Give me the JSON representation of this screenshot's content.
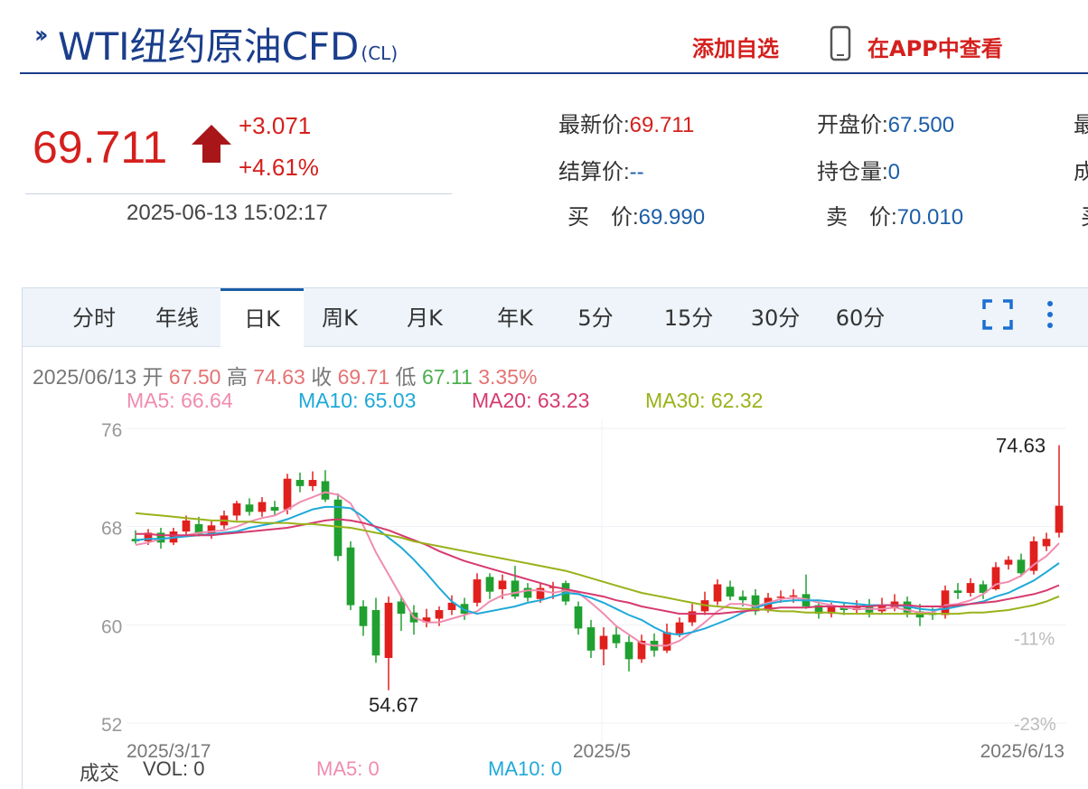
{
  "header": {
    "title": "WTI纽约原油CFD",
    "code": "(CL)",
    "add_fav": "添加自选",
    "app_link": "在APP中查看"
  },
  "quote": {
    "price": "69.711",
    "change": "+3.071",
    "change_pct": "+4.61%",
    "timestamp": "2025-06-13 15:02:17",
    "fields": {
      "latest_label": "最新价:",
      "latest_value": "69.711",
      "open_label": "开盘价:",
      "open_value": "67.500",
      "settle_label": "结算价:",
      "settle_value": "--",
      "oi_label": "持仓量:",
      "oi_value": "0",
      "bid_label": "买　价:",
      "bid_value": "69.990",
      "ask_label": "卖　价:",
      "ask_value": "70.010",
      "cut1": "最",
      "cut2": "成",
      "cut3": "买"
    }
  },
  "tabs": [
    "分时",
    "年线",
    "日K",
    "周K",
    "月K",
    "年K",
    "5分",
    "15分",
    "30分",
    "60分"
  ],
  "active_tab": "日K",
  "info": {
    "date": "2025/06/13",
    "open_label": "开",
    "open": "67.50",
    "high_label": "高",
    "high": "74.63",
    "close_label": "收",
    "close": "69.71",
    "low_label": "低",
    "low": "67.11",
    "amp": "3.35%"
  },
  "ma": {
    "ma5": "MA5: 66.64",
    "ma10": "MA10: 65.03",
    "ma20": "MA20: 63.23",
    "ma30": "MA30: 62.32"
  },
  "volume": {
    "label": "成交",
    "vol": "VOL: 0",
    "ma5": "MA5: 0",
    "ma10": "MA10: 0"
  },
  "colors": {
    "up": "#e0201d",
    "down": "#20a030",
    "ma5": "#f08cb0",
    "ma10": "#1fa9d8",
    "ma20": "#d63a6e",
    "ma30": "#99b21a",
    "brand": "#1b3e8c"
  },
  "chart_data": {
    "type": "candlestick",
    "x_labels": [
      "2025/3/17",
      "2025/5",
      "2025/6/13"
    ],
    "y_ticks": [
      76,
      68,
      60,
      52
    ],
    "pct_ticks": [
      "-11%",
      "-23%"
    ],
    "ylim": [
      52,
      76
    ],
    "annotations": [
      {
        "text": "74.63",
        "value": 74.63
      },
      {
        "text": "54.67",
        "value": 54.67
      }
    ],
    "candles": [
      [
        67.0,
        66.8,
        67.7,
        66.6
      ],
      [
        66.8,
        67.5,
        67.8,
        66.5
      ],
      [
        67.5,
        66.7,
        67.9,
        66.2
      ],
      [
        66.7,
        67.6,
        67.9,
        66.5
      ],
      [
        67.6,
        68.5,
        68.9,
        67.3
      ],
      [
        68.2,
        67.4,
        68.8,
        67.2
      ],
      [
        67.4,
        68.1,
        68.5,
        67.0
      ],
      [
        68.1,
        68.9,
        69.3,
        67.8
      ],
      [
        68.9,
        69.9,
        70.1,
        68.5
      ],
      [
        69.8,
        69.2,
        70.3,
        68.9
      ],
      [
        69.2,
        70.0,
        70.4,
        68.8
      ],
      [
        69.6,
        69.3,
        70.1,
        68.9
      ],
      [
        69.4,
        71.9,
        72.3,
        69.0
      ],
      [
        71.8,
        71.3,
        72.4,
        70.8
      ],
      [
        71.3,
        71.8,
        72.5,
        70.9
      ],
      [
        71.7,
        70.2,
        72.6,
        70.0
      ],
      [
        70.2,
        65.6,
        70.7,
        65.2
      ],
      [
        66.3,
        61.6,
        66.8,
        61.2
      ],
      [
        61.5,
        59.9,
        62.0,
        59.1
      ],
      [
        61.2,
        57.5,
        62.2,
        56.9
      ],
      [
        57.3,
        61.8,
        62.3,
        54.67
      ],
      [
        61.9,
        60.9,
        62.4,
        59.5
      ],
      [
        61.0,
        60.2,
        61.6,
        59.2
      ],
      [
        60.2,
        60.6,
        61.3,
        59.8
      ],
      [
        60.5,
        61.2,
        61.5,
        59.9
      ],
      [
        61.2,
        61.8,
        62.4,
        60.8
      ],
      [
        61.7,
        60.9,
        62.2,
        60.4
      ],
      [
        61.8,
        63.7,
        64.2,
        61.5
      ],
      [
        63.9,
        62.7,
        64.2,
        62.1
      ],
      [
        62.9,
        63.6,
        64.1,
        62.1
      ],
      [
        63.6,
        62.3,
        64.8,
        62.1
      ],
      [
        63.0,
        62.2,
        63.4,
        61.9
      ],
      [
        62.1,
        63.0,
        63.4,
        61.8
      ],
      [
        63.0,
        63.1,
        63.5,
        62.1
      ],
      [
        63.4,
        61.9,
        63.6,
        61.6
      ],
      [
        61.5,
        59.7,
        61.9,
        59.2
      ],
      [
        59.8,
        57.9,
        60.4,
        57.3
      ],
      [
        58.0,
        59.1,
        59.8,
        56.7
      ],
      [
        59.2,
        58.5,
        59.9,
        58.1
      ],
      [
        58.6,
        57.2,
        59.1,
        56.2
      ],
      [
        57.2,
        58.7,
        59.2,
        56.9
      ],
      [
        58.7,
        57.9,
        59.3,
        57.4
      ],
      [
        57.9,
        59.4,
        60.1,
        57.7
      ],
      [
        59.3,
        60.2,
        60.6,
        59.0
      ],
      [
        60.2,
        61.1,
        61.7,
        59.9
      ],
      [
        61.1,
        62.0,
        62.7,
        60.8
      ],
      [
        61.9,
        63.3,
        63.7,
        61.6
      ],
      [
        63.1,
        62.3,
        63.6,
        62.0
      ],
      [
        62.3,
        62.0,
        62.8,
        61.5
      ],
      [
        62.4,
        61.1,
        62.9,
        60.8
      ],
      [
        61.2,
        62.2,
        62.6,
        61.0
      ],
      [
        62.2,
        62.3,
        62.8,
        61.8
      ],
      [
        62.3,
        62.4,
        62.9,
        61.8
      ],
      [
        62.5,
        61.5,
        64.1,
        61.3
      ],
      [
        61.6,
        60.9,
        61.9,
        60.5
      ],
      [
        60.9,
        61.5,
        61.8,
        60.6
      ],
      [
        61.4,
        61.2,
        61.8,
        60.8
      ],
      [
        61.2,
        61.5,
        62.0,
        60.9
      ],
      [
        61.5,
        61.0,
        62.1,
        60.6
      ],
      [
        61.1,
        61.6,
        62.2,
        60.9
      ],
      [
        61.4,
        61.9,
        62.5,
        61.1
      ],
      [
        61.9,
        61.0,
        62.3,
        60.6
      ],
      [
        61.1,
        60.6,
        61.7,
        59.9
      ],
      [
        61.0,
        60.8,
        61.4,
        60.4
      ],
      [
        60.8,
        62.8,
        63.2,
        60.5
      ],
      [
        62.8,
        62.6,
        63.4,
        62.1
      ],
      [
        62.6,
        63.4,
        63.8,
        62.3
      ],
      [
        63.3,
        62.6,
        63.6,
        62.1
      ],
      [
        62.9,
        64.7,
        65.1,
        62.8
      ],
      [
        64.9,
        65.3,
        65.6,
        64.5
      ],
      [
        65.3,
        64.2,
        65.8,
        63.9
      ],
      [
        64.4,
        66.8,
        67.2,
        64.1
      ],
      [
        66.4,
        67.0,
        67.5,
        66.0
      ],
      [
        67.5,
        69.7,
        74.63,
        67.11
      ]
    ],
    "series": [
      {
        "name": "MA5",
        "values": [
          66.5,
          66.7,
          67.0,
          67.1,
          67.3,
          67.5,
          67.6,
          67.7,
          68.0,
          68.4,
          68.7,
          68.9,
          69.4,
          70.0,
          70.4,
          70.8,
          70.6,
          69.9,
          68.1,
          65.9,
          64.1,
          62.3,
          60.6,
          60.2,
          60.2,
          60.5,
          60.8,
          61.1,
          61.9,
          62.4,
          62.6,
          62.8,
          62.8,
          62.6,
          62.8,
          62.6,
          61.8,
          60.9,
          59.9,
          59.2,
          58.5,
          58.3,
          58.3,
          58.7,
          59.4,
          60.2,
          61.1,
          61.7,
          61.7,
          61.5,
          61.8,
          62.1,
          62.2,
          62.1,
          61.8,
          61.6,
          61.4,
          61.3,
          61.3,
          61.3,
          61.4,
          61.2,
          61.0,
          61.0,
          61.6,
          61.7,
          62.0,
          62.5,
          63.3,
          63.5,
          64.0,
          64.9,
          65.6,
          66.64
        ]
      },
      {
        "name": "MA10",
        "values": [
          66.9,
          67.0,
          67.0,
          67.1,
          67.2,
          67.3,
          67.4,
          67.5,
          67.6,
          67.9,
          68.1,
          68.3,
          68.6,
          69.0,
          69.4,
          69.6,
          69.6,
          69.5,
          68.8,
          67.9,
          67.1,
          66.3,
          65.3,
          64.2,
          63.0,
          61.9,
          61.2,
          60.9,
          61.1,
          61.3,
          61.5,
          61.8,
          62.0,
          62.3,
          62.6,
          62.5,
          62.2,
          61.8,
          61.3,
          60.8,
          60.4,
          59.8,
          59.3,
          59.2,
          59.4,
          59.7,
          60.1,
          60.5,
          61.0,
          61.4,
          61.7,
          61.9,
          62.0,
          62.0,
          62.0,
          61.9,
          61.8,
          61.7,
          61.6,
          61.6,
          61.6,
          61.5,
          61.3,
          61.2,
          61.3,
          61.5,
          61.7,
          61.9,
          62.3,
          62.6,
          63.1,
          63.6,
          64.3,
          65.03
        ]
      },
      {
        "name": "MA20",
        "values": [
          67.4,
          67.4,
          67.3,
          67.3,
          67.3,
          67.3,
          67.3,
          67.4,
          67.5,
          67.6,
          67.7,
          67.8,
          67.9,
          68.1,
          68.3,
          68.5,
          68.6,
          68.5,
          68.3,
          68.0,
          67.7,
          67.3,
          66.9,
          66.5,
          66.0,
          65.6,
          65.2,
          64.9,
          64.6,
          64.3,
          64.0,
          63.7,
          63.4,
          63.1,
          62.9,
          62.7,
          62.5,
          62.3,
          62.0,
          61.8,
          61.5,
          61.3,
          61.1,
          60.9,
          60.9,
          60.9,
          60.9,
          61.0,
          61.1,
          61.2,
          61.3,
          61.4,
          61.4,
          61.4,
          61.5,
          61.5,
          61.5,
          61.5,
          61.5,
          61.6,
          61.6,
          61.6,
          61.5,
          61.5,
          61.5,
          61.6,
          61.7,
          61.8,
          61.9,
          62.1,
          62.3,
          62.5,
          62.8,
          63.23
        ]
      },
      {
        "name": "MA30",
        "values": [
          69.1,
          69.0,
          68.9,
          68.8,
          68.7,
          68.6,
          68.5,
          68.5,
          68.4,
          68.4,
          68.3,
          68.3,
          68.3,
          68.2,
          68.2,
          68.1,
          68.0,
          67.9,
          67.7,
          67.5,
          67.3,
          67.1,
          66.8,
          66.6,
          66.4,
          66.2,
          66.0,
          65.8,
          65.6,
          65.4,
          65.2,
          65.0,
          64.8,
          64.6,
          64.4,
          64.1,
          63.8,
          63.5,
          63.2,
          62.9,
          62.6,
          62.4,
          62.2,
          62.0,
          61.8,
          61.6,
          61.5,
          61.4,
          61.3,
          61.3,
          61.2,
          61.1,
          61.1,
          61.0,
          61.0,
          61.0,
          60.9,
          60.9,
          60.9,
          60.9,
          60.9,
          60.9,
          60.9,
          60.9,
          60.9,
          60.9,
          61.0,
          61.0,
          61.1,
          61.2,
          61.4,
          61.6,
          61.9,
          62.32
        ]
      }
    ]
  }
}
